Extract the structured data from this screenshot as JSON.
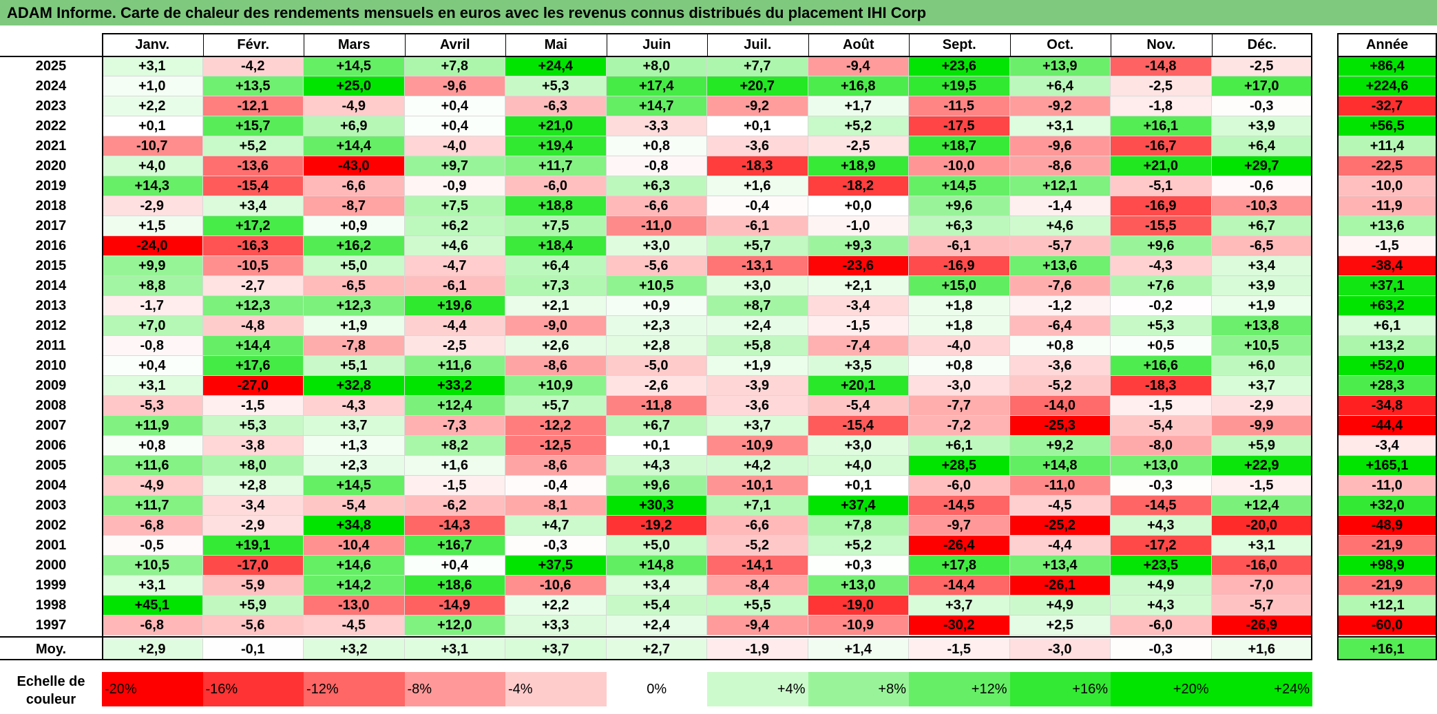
{
  "title": "ADAM Informe. Carte de chaleur des rendements mensuels en euros avec les revenus connus distribués du placement IHI Corp",
  "chart_data": {
    "type": "heatmap",
    "title": "ADAM Informe. Carte de chaleur des rendements mensuels en euros avec les revenus connus distribués du placement IHI Corp",
    "columns": [
      "Janv.",
      "Févr.",
      "Mars",
      "Avril",
      "Mai",
      "Juin",
      "Juil.",
      "Août",
      "Sept.",
      "Oct.",
      "Nov.",
      "Déc."
    ],
    "annual_header": "Année",
    "rows": [
      {
        "year": "2025",
        "values": [
          "+3,1",
          "-4,2",
          "+14,5",
          "+7,8",
          "+24,4",
          "+8,0",
          "+7,7",
          "-9,4",
          "+23,6",
          "+13,9",
          "-14,8",
          "-2,5"
        ],
        "annual": "+86,4"
      },
      {
        "year": "2024",
        "values": [
          "+1,0",
          "+13,5",
          "+25,0",
          "-9,6",
          "+5,3",
          "+17,4",
          "+20,7",
          "+16,8",
          "+19,5",
          "+6,4",
          "-2,5",
          "+17,0"
        ],
        "annual": "+224,6"
      },
      {
        "year": "2023",
        "values": [
          "+2,2",
          "-12,1",
          "-4,9",
          "+0,4",
          "-6,3",
          "+14,7",
          "-9,2",
          "+1,7",
          "-11,5",
          "-9,2",
          "-1,8",
          "-0,3"
        ],
        "annual": "-32,7"
      },
      {
        "year": "2022",
        "values": [
          "+0,1",
          "+15,7",
          "+6,9",
          "+0,4",
          "+21,0",
          "-3,3",
          "+0,1",
          "+5,2",
          "-17,5",
          "+3,1",
          "+16,1",
          "+3,9"
        ],
        "annual": "+56,5"
      },
      {
        "year": "2021",
        "values": [
          "-10,7",
          "+5,2",
          "+14,4",
          "-4,0",
          "+19,4",
          "+0,8",
          "-3,6",
          "-2,5",
          "+18,7",
          "-9,6",
          "-16,7",
          "+6,4"
        ],
        "annual": "+11,4"
      },
      {
        "year": "2020",
        "values": [
          "+4,0",
          "-13,6",
          "-43,0",
          "+9,7",
          "+11,7",
          "-0,8",
          "-18,3",
          "+18,9",
          "-10,0",
          "-8,6",
          "+21,0",
          "+29,7"
        ],
        "annual": "-22,5"
      },
      {
        "year": "2019",
        "values": [
          "+14,3",
          "-15,4",
          "-6,6",
          "-0,9",
          "-6,0",
          "+6,3",
          "+1,6",
          "-18,2",
          "+14,5",
          "+12,1",
          "-5,1",
          "-0,6"
        ],
        "annual": "-10,0"
      },
      {
        "year": "2018",
        "values": [
          "-2,9",
          "+3,4",
          "-8,7",
          "+7,5",
          "+18,8",
          "-6,6",
          "-0,4",
          "+0,0",
          "+9,6",
          "-1,4",
          "-16,9",
          "-10,3"
        ],
        "annual": "-11,9"
      },
      {
        "year": "2017",
        "values": [
          "+1,5",
          "+17,2",
          "+0,9",
          "+6,2",
          "+7,5",
          "-11,0",
          "-6,1",
          "-1,0",
          "+6,3",
          "+4,6",
          "-15,5",
          "+6,7"
        ],
        "annual": "+13,6"
      },
      {
        "year": "2016",
        "values": [
          "-24,0",
          "-16,3",
          "+16,2",
          "+4,6",
          "+18,4",
          "+3,0",
          "+5,7",
          "+9,3",
          "-6,1",
          "-5,7",
          "+9,6",
          "-6,5"
        ],
        "annual": "-1,5"
      },
      {
        "year": "2015",
        "values": [
          "+9,9",
          "-10,5",
          "+5,0",
          "-4,7",
          "+6,4",
          "-5,6",
          "-13,1",
          "-23,6",
          "-16,9",
          "+13,6",
          "-4,3",
          "+3,4"
        ],
        "annual": "-38,4"
      },
      {
        "year": "2014",
        "values": [
          "+8,8",
          "-2,7",
          "-6,5",
          "-6,1",
          "+7,3",
          "+10,5",
          "+3,0",
          "+2,1",
          "+15,0",
          "-7,6",
          "+7,6",
          "+3,9"
        ],
        "annual": "+37,1"
      },
      {
        "year": "2013",
        "values": [
          "-1,7",
          "+12,3",
          "+12,3",
          "+19,6",
          "+2,1",
          "+0,9",
          "+8,7",
          "-3,4",
          "+1,8",
          "-1,2",
          "-0,2",
          "+1,9"
        ],
        "annual": "+63,2"
      },
      {
        "year": "2012",
        "values": [
          "+7,0",
          "-4,8",
          "+1,9",
          "-4,4",
          "-9,0",
          "+2,3",
          "+2,4",
          "-1,5",
          "+1,8",
          "-6,4",
          "+5,3",
          "+13,8"
        ],
        "annual": "+6,1"
      },
      {
        "year": "2011",
        "values": [
          "-0,8",
          "+14,4",
          "-7,8",
          "-2,5",
          "+2,6",
          "+2,8",
          "+5,8",
          "-7,4",
          "-4,0",
          "+0,8",
          "+0,5",
          "+10,5"
        ],
        "annual": "+13,2"
      },
      {
        "year": "2010",
        "values": [
          "+0,4",
          "+17,6",
          "+5,1",
          "+11,6",
          "-8,6",
          "-5,0",
          "+1,9",
          "+3,5",
          "+0,8",
          "-3,6",
          "+16,6",
          "+6,0"
        ],
        "annual": "+52,0"
      },
      {
        "year": "2009",
        "values": [
          "+3,1",
          "-27,0",
          "+32,8",
          "+33,2",
          "+10,9",
          "-2,6",
          "-3,9",
          "+20,1",
          "-3,0",
          "-5,2",
          "-18,3",
          "+3,7"
        ],
        "annual": "+28,3"
      },
      {
        "year": "2008",
        "values": [
          "-5,3",
          "-1,5",
          "-4,3",
          "+12,4",
          "+5,7",
          "-11,8",
          "-3,6",
          "-5,4",
          "-7,7",
          "-14,0",
          "-1,5",
          "-2,9"
        ],
        "annual": "-34,8"
      },
      {
        "year": "2007",
        "values": [
          "+11,9",
          "+5,3",
          "+3,7",
          "-7,3",
          "-12,2",
          "+6,7",
          "+3,7",
          "-15,4",
          "-7,2",
          "-25,3",
          "-5,4",
          "-9,9"
        ],
        "annual": "-44,4"
      },
      {
        "year": "2006",
        "values": [
          "+0,8",
          "-3,8",
          "+1,3",
          "+8,2",
          "-12,5",
          "+0,1",
          "-10,9",
          "+3,0",
          "+6,1",
          "+9,2",
          "-8,0",
          "+5,9"
        ],
        "annual": "-3,4"
      },
      {
        "year": "2005",
        "values": [
          "+11,6",
          "+8,0",
          "+2,3",
          "+1,6",
          "-8,6",
          "+4,3",
          "+4,2",
          "+4,0",
          "+28,5",
          "+14,8",
          "+13,0",
          "+22,9"
        ],
        "annual": "+165,1"
      },
      {
        "year": "2004",
        "values": [
          "-4,9",
          "+2,8",
          "+14,5",
          "-1,5",
          "-0,4",
          "+9,6",
          "-10,1",
          "+0,1",
          "-6,0",
          "-11,0",
          "-0,3",
          "-1,5"
        ],
        "annual": "-11,0"
      },
      {
        "year": "2003",
        "values": [
          "+11,7",
          "-3,4",
          "-5,4",
          "-6,2",
          "-8,1",
          "+30,3",
          "+7,1",
          "+37,4",
          "-14,5",
          "-4,5",
          "-14,5",
          "+12,4"
        ],
        "annual": "+32,0"
      },
      {
        "year": "2002",
        "values": [
          "-6,8",
          "-2,9",
          "+34,8",
          "-14,3",
          "+4,7",
          "-19,2",
          "-6,6",
          "+7,8",
          "-9,7",
          "-25,2",
          "+4,3",
          "-20,0"
        ],
        "annual": "-48,9"
      },
      {
        "year": "2001",
        "values": [
          "-0,5",
          "+19,1",
          "-10,4",
          "+16,7",
          "-0,3",
          "+5,0",
          "-5,2",
          "+5,2",
          "-26,4",
          "-4,4",
          "-17,2",
          "+3,1"
        ],
        "annual": "-21,9"
      },
      {
        "year": "2000",
        "values": [
          "+10,5",
          "-17,0",
          "+14,6",
          "+0,4",
          "+37,5",
          "+14,8",
          "-14,1",
          "+0,3",
          "+17,8",
          "+13,4",
          "+23,5",
          "-16,0"
        ],
        "annual": "+98,9"
      },
      {
        "year": "1999",
        "values": [
          "+3,1",
          "-5,9",
          "+14,2",
          "+18,6",
          "-10,6",
          "+3,4",
          "-8,4",
          "+13,0",
          "-14,4",
          "-26,1",
          "+4,9",
          "-7,0"
        ],
        "annual": "-21,9"
      },
      {
        "year": "1998",
        "values": [
          "+45,1",
          "+5,9",
          "-13,0",
          "-14,9",
          "+2,2",
          "+5,4",
          "+5,5",
          "-19,0",
          "+3,7",
          "+4,9",
          "+4,3",
          "-5,7"
        ],
        "annual": "+12,1"
      },
      {
        "year": "1997",
        "values": [
          "-6,8",
          "-5,6",
          "-4,5",
          "+12,0",
          "+3,3",
          "+2,4",
          "-9,4",
          "-10,9",
          "-30,2",
          "+2,5",
          "-6,0",
          "-26,9"
        ],
        "annual": "-60,0"
      }
    ],
    "average": {
      "label": "Moy.",
      "values": [
        "+2,9",
        "-0,1",
        "+3,2",
        "+3,1",
        "+3,7",
        "+2,7",
        "-1,9",
        "+1,4",
        "-1,5",
        "-3,0",
        "-0,3",
        "+1,6"
      ],
      "annual": "+16,1"
    },
    "color_scale": {
      "label": "Echelle de couleur",
      "stops": [
        "-20%",
        "-16%",
        "-12%",
        "-8%",
        "-4%",
        "0%",
        "+4%",
        "+8%",
        "+12%",
        "+16%",
        "+20%",
        "+24%"
      ],
      "negative_max_color": "#ff0000",
      "zero_color": "#ffffff",
      "positive_max_color": "#00e400"
    }
  }
}
